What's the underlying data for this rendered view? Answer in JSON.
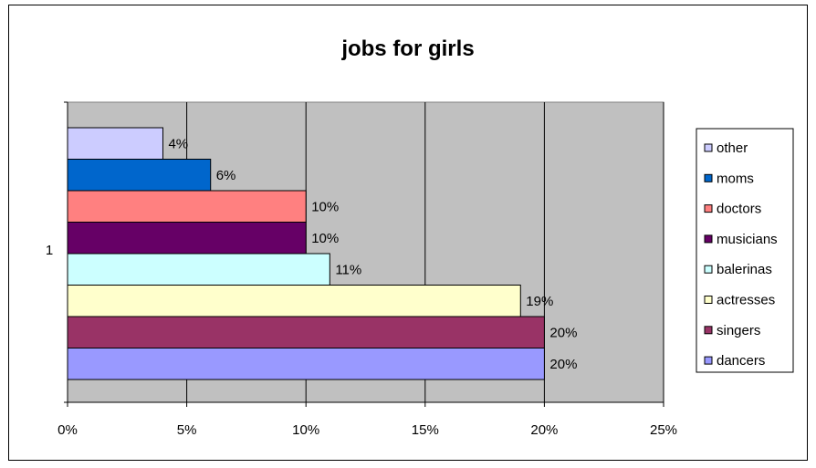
{
  "chart_data": {
    "type": "bar",
    "orientation": "horizontal",
    "title": "jobs for girls",
    "category_label": "1",
    "xlim": [
      0,
      25
    ],
    "x_ticks": [
      "0%",
      "5%",
      "10%",
      "15%",
      "20%",
      "25%"
    ],
    "grid": true,
    "legend_position": "right",
    "series": [
      {
        "name": "dancers",
        "value": 20,
        "label": "20%",
        "color": "#9999ff"
      },
      {
        "name": "singers",
        "value": 20,
        "label": "20%",
        "color": "#993366"
      },
      {
        "name": "actresses",
        "value": 19,
        "label": "19%",
        "color": "#ffffcc"
      },
      {
        "name": "balerinas",
        "value": 11,
        "label": "11%",
        "color": "#ccffff"
      },
      {
        "name": "musicians",
        "value": 10,
        "label": "10%",
        "color": "#660066"
      },
      {
        "name": "doctors",
        "value": 10,
        "label": "10%",
        "color": "#ff8080"
      },
      {
        "name": "moms",
        "value": 6,
        "label": "6%",
        "color": "#0066cc"
      },
      {
        "name": "other",
        "value": 4,
        "label": "4%",
        "color": "#ccccff"
      }
    ],
    "plot_background": "#c0c0c0"
  }
}
